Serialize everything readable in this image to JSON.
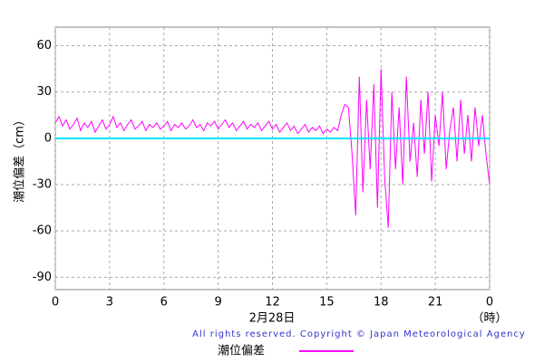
{
  "chart_data": {
    "type": "line",
    "ylabel": "潮位偏差（cm）",
    "xlabel": "2月28日",
    "xunit": "（時）",
    "copyright": "All rights reserved. Copyright © Japan Meteorological Agency",
    "xlim": [
      0,
      24
    ],
    "ylim": [
      -98,
      72
    ],
    "xticks": [
      0,
      3,
      6,
      9,
      12,
      15,
      18,
      21,
      {
        "value": 24,
        "label": "0"
      }
    ],
    "yticks": [
      60,
      30,
      0,
      -30,
      -60,
      -90
    ],
    "grid": true,
    "reference_y": 0,
    "reference_color": "#00e5ff",
    "x": [
      0,
      0.2,
      0.4,
      0.6,
      0.8,
      1,
      1.2,
      1.4,
      1.6,
      1.8,
      2,
      2.2,
      2.4,
      2.6,
      2.8,
      3,
      3.2,
      3.4,
      3.6,
      3.8,
      4,
      4.2,
      4.4,
      4.6,
      4.8,
      5,
      5.2,
      5.4,
      5.6,
      5.8,
      6,
      6.2,
      6.4,
      6.6,
      6.8,
      7,
      7.2,
      7.4,
      7.6,
      7.8,
      8,
      8.2,
      8.4,
      8.6,
      8.8,
      9,
      9.2,
      9.4,
      9.6,
      9.8,
      10,
      10.2,
      10.4,
      10.6,
      10.8,
      11,
      11.2,
      11.4,
      11.6,
      11.8,
      12,
      12.2,
      12.4,
      12.6,
      12.8,
      13,
      13.2,
      13.4,
      13.6,
      13.8,
      14,
      14.2,
      14.4,
      14.6,
      14.8,
      15,
      15.2,
      15.4,
      15.6,
      15.8,
      16,
      16.2,
      16.4,
      16.6,
      16.8,
      17,
      17.2,
      17.4,
      17.6,
      17.8,
      18,
      18.2,
      18.4,
      18.6,
      18.8,
      19,
      19.2,
      19.4,
      19.6,
      19.8,
      20,
      20.2,
      20.4,
      20.6,
      20.8,
      21,
      21.2,
      21.4,
      21.6,
      21.8,
      22,
      22.2,
      22.4,
      22.6,
      22.8,
      23,
      23.2,
      23.4,
      23.6,
      23.8,
      24
    ],
    "series": [
      {
        "name": "潮位偏差",
        "color": "#ff00ff",
        "values": [
          10,
          14,
          8,
          12,
          6,
          9,
          13,
          5,
          10,
          7,
          11,
          4,
          8,
          12,
          6,
          9,
          14,
          7,
          10,
          5,
          9,
          12,
          6,
          8,
          11,
          5,
          9,
          7,
          10,
          6,
          8,
          11,
          5,
          9,
          7,
          10,
          6,
          8,
          12,
          7,
          9,
          5,
          10,
          8,
          11,
          6,
          9,
          12,
          7,
          10,
          5,
          8,
          11,
          6,
          9,
          7,
          10,
          5,
          8,
          11,
          6,
          9,
          4,
          7,
          10,
          5,
          8,
          3,
          6,
          9,
          4,
          7,
          5,
          8,
          3,
          6,
          4,
          7,
          5,
          15,
          22,
          20,
          -10,
          -50,
          40,
          -35,
          25,
          -20,
          35,
          -45,
          45,
          -25,
          -58,
          30,
          -20,
          20,
          -30,
          40,
          -15,
          10,
          -25,
          25,
          -10,
          30,
          -28,
          15,
          -5,
          30,
          -20,
          5,
          20,
          -15,
          25,
          -10,
          15,
          -15,
          20,
          -5,
          15,
          -10,
          -30
        ]
      }
    ]
  }
}
